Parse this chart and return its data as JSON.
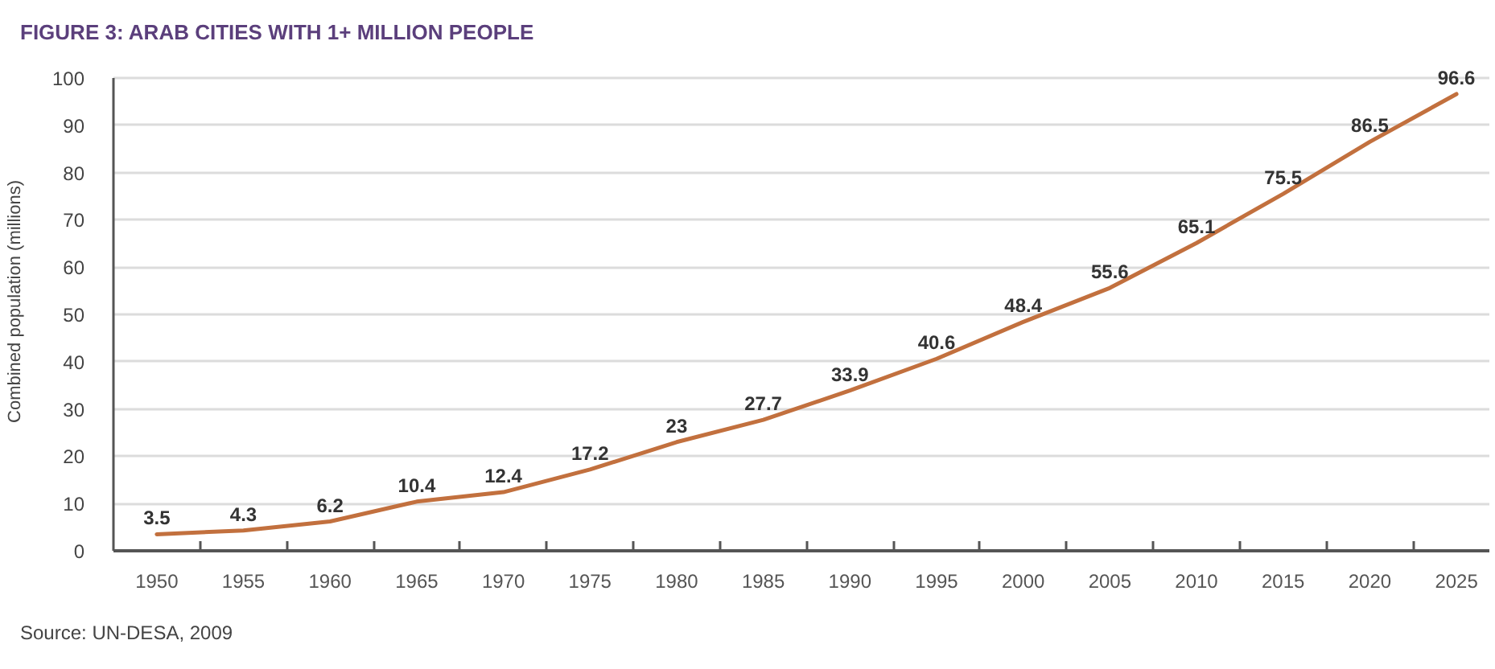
{
  "chart_data": {
    "type": "line",
    "title": "FIGURE 3: ARAB CITIES WITH 1+ MILLION PEOPLE",
    "ylabel": "Combined population (millions)",
    "categories": [
      "1950",
      "1955",
      "1960",
      "1965",
      "1970",
      "1975",
      "1980",
      "1985",
      "1990",
      "1995",
      "2000",
      "2005",
      "2010",
      "2015",
      "2020",
      "2025"
    ],
    "series": [
      {
        "color": "#c2703e",
        "values": [
          3.5,
          4.3,
          6.2,
          10.4,
          12.4,
          17.2,
          23,
          27.7,
          33.9,
          40.6,
          48.4,
          55.6,
          65.1,
          75.5,
          86.5,
          96.6
        ]
      }
    ],
    "ylim": [
      0,
      100
    ],
    "yticks": [
      0,
      10,
      20,
      30,
      40,
      50,
      60,
      70,
      80,
      90,
      100
    ],
    "grid": "y",
    "data_labels": true,
    "annotations": [
      "Source: UN-DESA, 2009"
    ]
  }
}
